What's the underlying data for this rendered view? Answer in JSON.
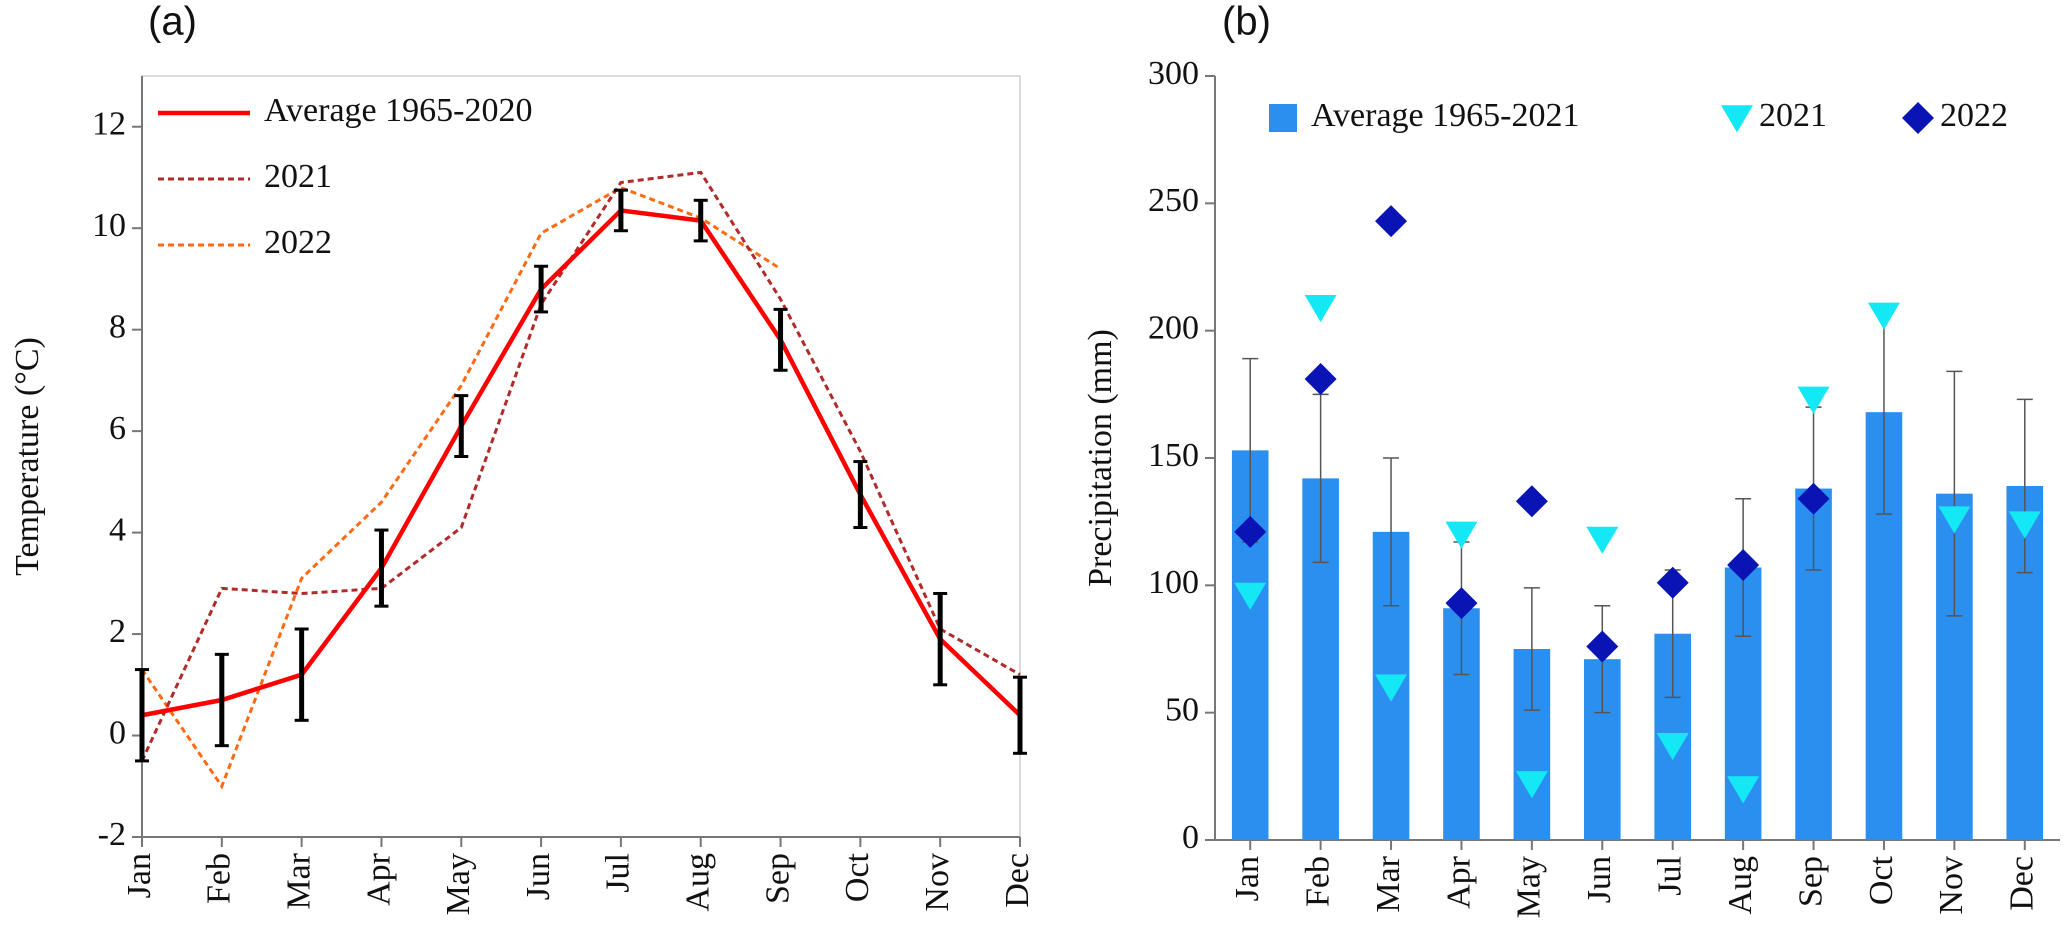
{
  "chart_data": [
    {
      "type": "line",
      "panel_label": "(a)",
      "y_label": "Temperature (°C)",
      "categories": [
        "Jan",
        "Feb",
        "Mar",
        "Apr",
        "May",
        "Jun",
        "Jul",
        "Aug",
        "Sep",
        "Oct",
        "Nov",
        "Dec"
      ],
      "ylim": [
        -2,
        13
      ],
      "yticks": [
        -2,
        0,
        2,
        4,
        6,
        8,
        10,
        12
      ],
      "grid": false,
      "legend": "upper left",
      "error_color": "#000000",
      "series": [
        {
          "name": "Average 1965-2020",
          "color": "#ff0000",
          "style": "solid",
          "values": [
            0.4,
            0.7,
            1.2,
            3.3,
            6.1,
            8.8,
            10.35,
            10.15,
            7.8,
            4.75,
            1.9,
            0.4
          ],
          "errors": [
            0.9,
            0.9,
            0.9,
            0.75,
            0.6,
            0.45,
            0.4,
            0.4,
            0.6,
            0.65,
            0.9,
            0.75
          ]
        },
        {
          "name": "2021",
          "color": "#b22a2a",
          "style": "dashed",
          "values": [
            -0.5,
            2.9,
            2.8,
            2.9,
            4.1,
            8.5,
            10.9,
            11.1,
            8.6,
            5.6,
            2.1,
            1.2
          ]
        },
        {
          "name": "2022",
          "color": "#ff6a13",
          "style": "dashed",
          "values": [
            1.3,
            -1.0,
            3.1,
            4.6,
            6.9,
            9.9,
            10.8,
            10.2,
            9.2,
            null,
            null,
            null
          ]
        }
      ]
    },
    {
      "type": "bar",
      "panel_label": "(b)",
      "y_label": "Precipitation  (mm)",
      "categories": [
        "Jan",
        "Feb",
        "Mar",
        "Apr",
        "May",
        "Jun",
        "Jul",
        "Aug",
        "Sep",
        "Oct",
        "Nov",
        "Dec"
      ],
      "ylim": [
        0,
        300
      ],
      "yticks": [
        0,
        50,
        100,
        150,
        200,
        250,
        300
      ],
      "grid": false,
      "legend": "upper",
      "error_color": "#555555",
      "series": [
        {
          "name": "Average 1965-2021",
          "color": "#2b8ff0",
          "marker": "bar",
          "values": [
            153,
            142,
            121,
            91,
            75,
            71,
            81,
            107,
            138,
            168,
            136,
            139
          ],
          "errors": [
            36,
            33,
            29,
            26,
            24,
            21,
            25,
            27,
            32,
            40,
            48,
            34
          ]
        },
        {
          "name": "2021",
          "color": "#14e8f5",
          "marker": "triangle-down",
          "values": [
            96,
            209,
            60,
            120,
            22,
            118,
            37,
            20,
            173,
            206,
            126,
            124
          ]
        },
        {
          "name": "2022",
          "color": "#0a14b4",
          "marker": "diamond",
          "values": [
            121,
            181,
            243,
            93,
            133,
            76,
            101,
            108,
            134,
            null,
            null,
            null
          ]
        }
      ]
    }
  ]
}
